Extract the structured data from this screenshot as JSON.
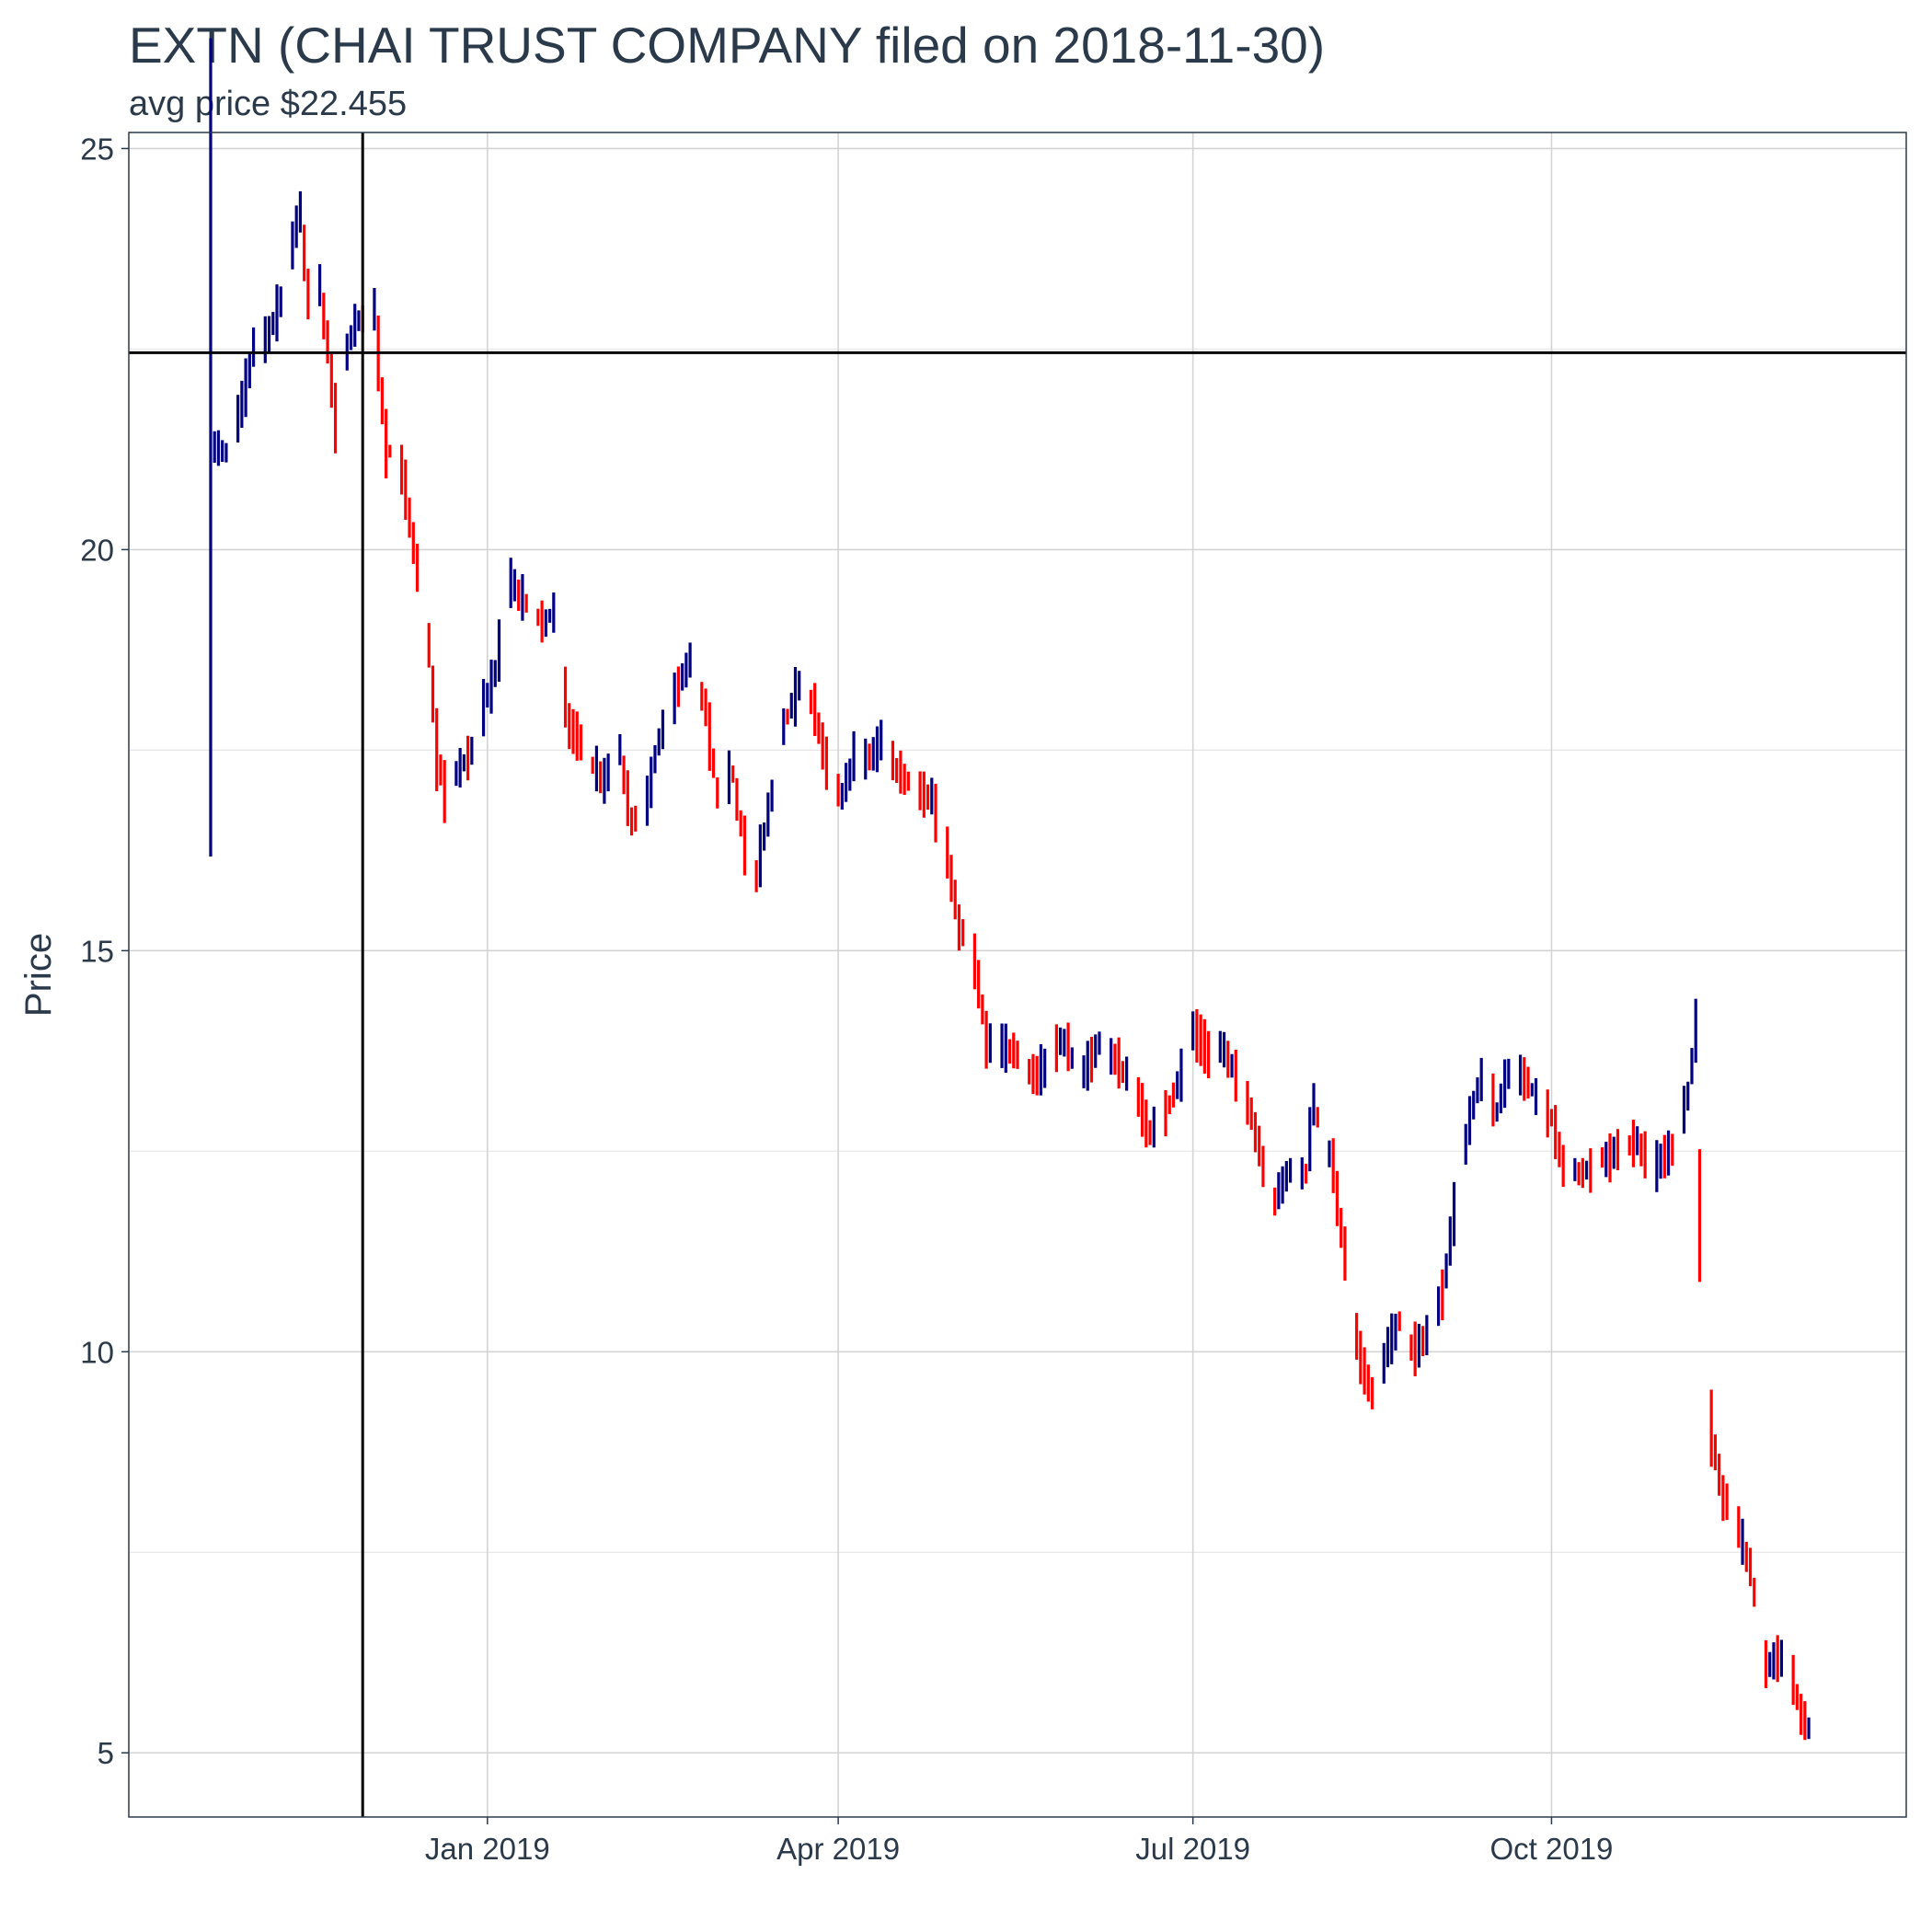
{
  "chart_data": {
    "type": "ohlc",
    "title": "EXTN (CHAI TRUST COMPANY filed on 2018-11-30)",
    "subtitle": "avg price $22.455",
    "xlabel": "",
    "ylabel": "Price",
    "ylim": [
      4.2,
      25.2
    ],
    "xlim": [
      "2018-10-01",
      "2019-12-31"
    ],
    "yticks": [
      5,
      10,
      15,
      20,
      25
    ],
    "xticks": [
      {
        "date": "2019-01-01",
        "label": "Jan 2019"
      },
      {
        "date": "2019-04-01",
        "label": "Apr 2019"
      },
      {
        "date": "2019-07-01",
        "label": "Jul 2019"
      },
      {
        "date": "2019-10-01",
        "label": "Oct 2019"
      }
    ],
    "grid": true,
    "colors": {
      "up": "#000080",
      "down": "#ff0000",
      "reference": "#000000"
    },
    "reference_lines": {
      "horizontal": {
        "value": 22.455,
        "label": "avg price"
      },
      "vertical": {
        "date": "2018-11-30",
        "label": "filed"
      }
    },
    "anchors": [
      [
        "2018-10-22",
        21.3
      ],
      [
        "2018-10-26",
        21.2
      ],
      [
        "2018-10-30",
        21.8
      ],
      [
        "2018-11-02",
        22.5
      ],
      [
        "2018-11-06",
        22.7
      ],
      [
        "2018-11-09",
        23.1
      ],
      [
        "2018-11-12",
        23.8
      ],
      [
        "2018-11-14",
        24.2
      ],
      [
        "2018-11-16",
        23.2
      ],
      [
        "2018-11-19",
        23.3
      ],
      [
        "2018-11-21",
        22.6
      ],
      [
        "2018-11-23",
        21.6
      ],
      [
        "2018-11-26",
        22.5
      ],
      [
        "2018-11-28",
        22.8
      ],
      [
        "2018-12-03",
        23.0
      ],
      [
        "2018-12-06",
        21.3
      ],
      [
        "2018-12-10",
        21.0
      ],
      [
        "2018-12-13",
        20.1
      ],
      [
        "2018-12-17",
        18.8
      ],
      [
        "2018-12-19",
        17.5
      ],
      [
        "2018-12-21",
        17.0
      ],
      [
        "2018-12-24",
        17.2
      ],
      [
        "2018-12-28",
        17.5
      ],
      [
        "2019-01-03",
        18.5
      ],
      [
        "2019-01-07",
        19.6
      ],
      [
        "2019-01-10",
        19.4
      ],
      [
        "2019-01-15",
        19.1
      ],
      [
        "2019-01-18",
        19.2
      ],
      [
        "2019-01-22",
        17.8
      ],
      [
        "2019-01-28",
        17.3
      ],
      [
        "2019-01-31",
        17.1
      ],
      [
        "2019-02-04",
        17.5
      ],
      [
        "2019-02-07",
        16.6
      ],
      [
        "2019-02-11",
        16.9
      ],
      [
        "2019-02-14",
        17.6
      ],
      [
        "2019-02-19",
        18.3
      ],
      [
        "2019-02-22",
        18.6
      ],
      [
        "2019-02-26",
        18.0
      ],
      [
        "2019-03-01",
        17.0
      ],
      [
        "2019-03-05",
        17.2
      ],
      [
        "2019-03-08",
        16.3
      ],
      [
        "2019-03-11",
        15.9
      ],
      [
        "2019-03-14",
        16.7
      ],
      [
        "2019-03-18",
        17.8
      ],
      [
        "2019-03-22",
        18.3
      ],
      [
        "2019-03-26",
        18.0
      ],
      [
        "2019-03-29",
        17.3
      ],
      [
        "2019-04-02",
        16.9
      ],
      [
        "2019-04-05",
        17.4
      ],
      [
        "2019-04-09",
        17.4
      ],
      [
        "2019-04-12",
        17.6
      ],
      [
        "2019-04-17",
        17.2
      ],
      [
        "2019-04-22",
        17.0
      ],
      [
        "2019-04-25",
        16.9
      ],
      [
        "2019-04-29",
        16.2
      ],
      [
        "2019-05-02",
        15.3
      ],
      [
        "2019-05-06",
        14.9
      ],
      [
        "2019-05-09",
        13.9
      ],
      [
        "2019-05-13",
        13.8
      ],
      [
        "2019-05-17",
        13.7
      ],
      [
        "2019-05-22",
        13.4
      ],
      [
        "2019-05-28",
        13.9
      ],
      [
        "2019-06-03",
        13.5
      ],
      [
        "2019-06-07",
        13.8
      ],
      [
        "2019-06-12",
        13.6
      ],
      [
        "2019-06-17",
        13.2
      ],
      [
        "2019-06-20",
        12.7
      ],
      [
        "2019-06-24",
        13.0
      ],
      [
        "2019-06-27",
        13.3
      ],
      [
        "2019-07-01",
        14.0
      ],
      [
        "2019-07-05",
        13.7
      ],
      [
        "2019-07-09",
        13.8
      ],
      [
        "2019-07-12",
        13.4
      ],
      [
        "2019-07-16",
        13.0
      ],
      [
        "2019-07-19",
        12.3
      ],
      [
        "2019-07-22",
        11.9
      ],
      [
        "2019-07-26",
        12.3
      ],
      [
        "2019-07-30",
        12.2
      ],
      [
        "2019-08-01",
        13.1
      ],
      [
        "2019-08-06",
        12.3
      ],
      [
        "2019-08-09",
        11.2
      ],
      [
        "2019-08-13",
        9.9
      ],
      [
        "2019-08-16",
        9.5
      ],
      [
        "2019-08-19",
        9.9
      ],
      [
        "2019-08-23",
        10.4
      ],
      [
        "2019-08-27",
        10.0
      ],
      [
        "2019-08-30",
        10.2
      ],
      [
        "2019-09-03",
        10.7
      ],
      [
        "2019-09-06",
        11.7
      ],
      [
        "2019-09-10",
        12.9
      ],
      [
        "2019-09-13",
        13.4
      ],
      [
        "2019-09-17",
        13.0
      ],
      [
        "2019-09-20",
        13.5
      ],
      [
        "2019-09-24",
        13.4
      ],
      [
        "2019-09-27",
        13.2
      ],
      [
        "2019-10-01",
        12.9
      ],
      [
        "2019-10-04",
        12.3
      ],
      [
        "2019-10-09",
        12.2
      ],
      [
        "2019-10-14",
        12.4
      ],
      [
        "2019-10-18",
        12.5
      ],
      [
        "2019-10-23",
        12.6
      ],
      [
        "2019-10-28",
        12.3
      ],
      [
        "2019-11-01",
        12.5
      ],
      [
        "2019-11-05",
        13.2
      ],
      [
        "2019-11-07",
        14.0
      ],
      [
        "2019-11-08",
        11.7
      ],
      [
        "2019-11-11",
        9.0
      ],
      [
        "2019-11-14",
        8.2
      ],
      [
        "2019-11-18",
        7.8
      ],
      [
        "2019-11-21",
        7.3
      ],
      [
        "2019-11-25",
        6.1
      ],
      [
        "2019-11-29",
        6.2
      ],
      [
        "2019-12-02",
        5.9
      ],
      [
        "2019-12-04",
        5.5
      ],
      [
        "2019-12-06",
        5.3
      ]
    ]
  }
}
